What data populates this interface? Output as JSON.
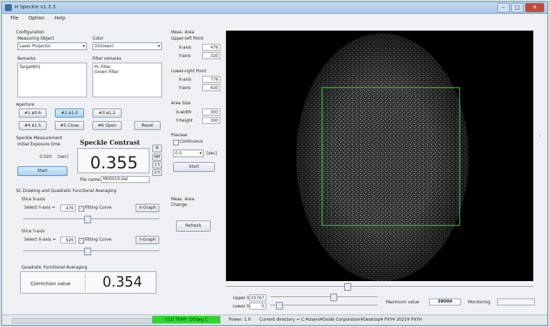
{
  "window": {
    "title": "H Speckle v1.3.3"
  },
  "menu": [
    "File",
    "Option",
    "Help"
  ],
  "config": {
    "section_label": "Configuration",
    "measuring_object_label": "Measuring Object",
    "measuring_object_value": "Laser Projector",
    "color_label": "Color",
    "color_value": "G(Green)",
    "remarks_label": "Remarks",
    "remarks_value": "TargetR01",
    "filter_remarks_label": "Filter remarks",
    "filter_remarks_lines": [
      "PL Filter",
      "Green Filter"
    ]
  },
  "aperture": {
    "label": "Aperture",
    "buttons": [
      "#1 ø0.6",
      "#2 ø1.0",
      "#3 ø1.2",
      "#4 ø1.5",
      "#5 Close",
      "#6 Open"
    ],
    "reset_label": "Reset"
  },
  "speckle": {
    "section_label": "Speckle Measurement",
    "initial_exposure_label": "Initial Exposure time",
    "exposure_value": "0.020",
    "exposure_unit": "[sec]",
    "contrast_title": "Speckle Contrast",
    "contrast_value": "0.355",
    "side_labels": [
      "W",
      "MM",
      "1.5",
      "0.5"
    ],
    "start_label": "Start",
    "file_name_label": "File name",
    "file_name_value": "M00010.dat"
  },
  "drawing": {
    "section_label": "SC Drawing and Quadratic Functional Averaging",
    "slice_x_label": "Slice X-axis",
    "select_y_label": "Select Y-axis =",
    "select_y_value": "476",
    "fitting_label_1": "Fitting Curve",
    "graph_btn_1": "X-Graph",
    "slice_y_label": "Slice Y-axis",
    "select_x_label": "Select X-axis =",
    "select_x_value": "926",
    "fitting_label_2": "Fitting Curve",
    "graph_btn_2": "Y-Graph"
  },
  "qfa": {
    "section_label": "Quadratic Functional Averaging",
    "correction_label": "Correction value",
    "correction_value": "0.354"
  },
  "meas_area": {
    "title_lines": [
      "Meas. Area",
      "Upper-left Point"
    ],
    "x_label_1": "X-axis",
    "x_value_1": "476",
    "y_label_1": "Y-axis",
    "y_value_1": "320",
    "lower_right_label": "Lower-right Point",
    "x_label_2": "X-axis",
    "x_value_2": "776",
    "y_label_2": "Y-axis",
    "y_value_2": "620",
    "area_size_label": "Area Size",
    "width_label": "X-width",
    "width_value": "300",
    "height_label": "Y-height",
    "height_value": "300"
  },
  "preview": {
    "label": "Preview",
    "continuous_label": "Continuous",
    "exposure_value": "0.5",
    "unit": "[sec]",
    "start_label": "Start"
  },
  "change": {
    "label_lines": [
      "Meas. Area",
      "Change"
    ],
    "refresh_label": "Refresh"
  },
  "levels": {
    "upper_label": "Upper limit",
    "upper_value": "32767",
    "lower_label": "Lower limit",
    "lower_value": "0",
    "max_label": "Maximum value",
    "max_value": "38000",
    "monitoring_label": "Monitoring"
  },
  "status": {
    "state": "CCD TEMP: OOdeg C",
    "state_color": "#2fd62f",
    "power": "Power: 1.0",
    "directory": "Current directory = C:¥Users¥Oxide Corporation¥Desktop¥ PXY¥ 2021¥ PXYH"
  }
}
